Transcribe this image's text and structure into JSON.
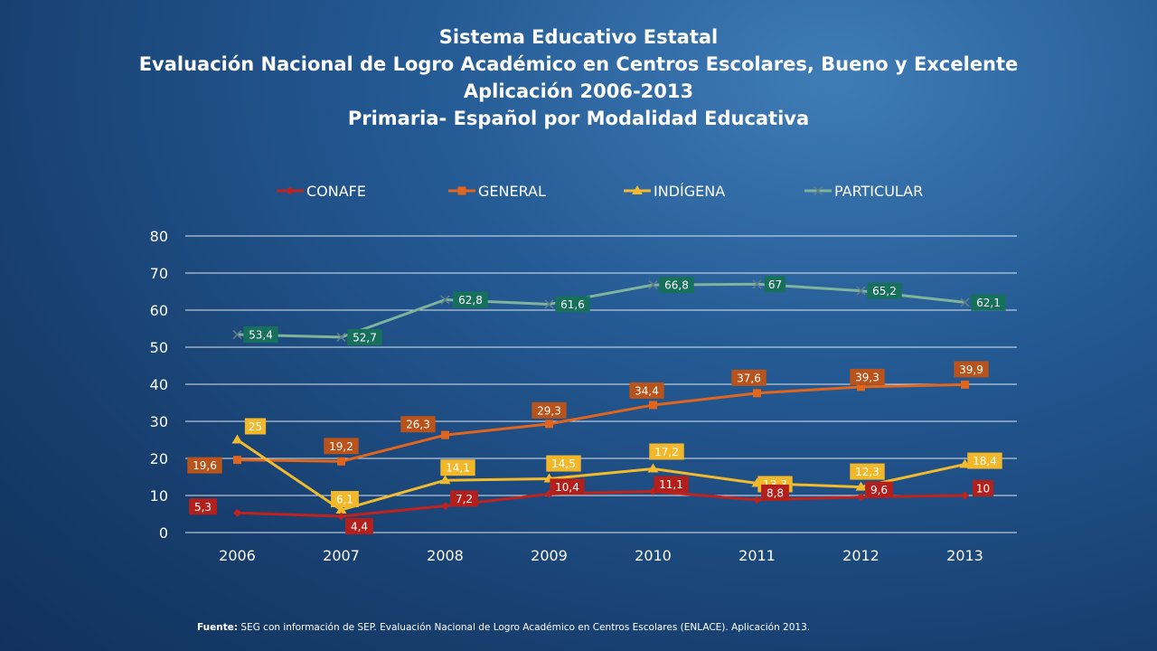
{
  "titles": {
    "line1": "Sistema Educativo Estatal",
    "line2": "Evaluación Nacional de Logro Académico en Centros Escolares, Bueno y Excelente",
    "line3": "Aplicación 2006-2013",
    "line4": "Primaria- Español por Modalidad Educativa"
  },
  "footer": {
    "label": "Fuente:",
    "text": " SEG con información de SEP. Evaluación Nacional de Logro Académico  en Centros Escolares (ENLACE). Aplicación 2013."
  },
  "chart_data": {
    "type": "line",
    "categories": [
      "2006",
      "2007",
      "2008",
      "2009",
      "2010",
      "2011",
      "2012",
      "2013"
    ],
    "ylim": [
      0,
      80
    ],
    "yticks": [
      0,
      10,
      20,
      30,
      40,
      50,
      60,
      70,
      80
    ],
    "grid": true,
    "legend_position": "top",
    "series": [
      {
        "name": "CONAFE",
        "marker": "diamond",
        "color": "#c0221c",
        "label_bg": "#b3201b",
        "values": [
          5.3,
          4.4,
          7.2,
          10.4,
          11.1,
          8.8,
          9.6,
          10
        ],
        "labels": [
          "5,3",
          "4,4",
          "7,2",
          "10,4",
          "11,1",
          "8,8",
          "9,6",
          "10"
        ]
      },
      {
        "name": "GENERAL",
        "marker": "square",
        "color": "#e2651e",
        "label_bg": "#b8531b",
        "values": [
          19.6,
          19.2,
          26.3,
          29.3,
          34.4,
          37.6,
          39.3,
          39.9
        ],
        "labels": [
          "19,6",
          "19,2",
          "26,3",
          "29,3",
          "34,4",
          "37,6",
          "39,3",
          "39,9"
        ]
      },
      {
        "name": "INDÍGENA",
        "marker": "triangle",
        "color": "#f2bb2d",
        "label_bg": "#f2b82a",
        "values": [
          25,
          6.1,
          14.1,
          14.5,
          17.2,
          13.3,
          12.3,
          18.4
        ],
        "labels": [
          "25",
          "6,1",
          "14,1",
          "14,5",
          "17,2",
          "13,3",
          "12,3",
          "18,4"
        ]
      },
      {
        "name": "PARTICULAR",
        "marker": "x",
        "color": "#7fb39c",
        "label_bg": "#17705c",
        "values": [
          53.4,
          52.7,
          62.8,
          61.6,
          66.8,
          67,
          65.2,
          62.1
        ],
        "labels": [
          "53,4",
          "52,7",
          "62,8",
          "61,6",
          "66,8",
          "67",
          "65,2",
          "62,1"
        ]
      }
    ]
  }
}
